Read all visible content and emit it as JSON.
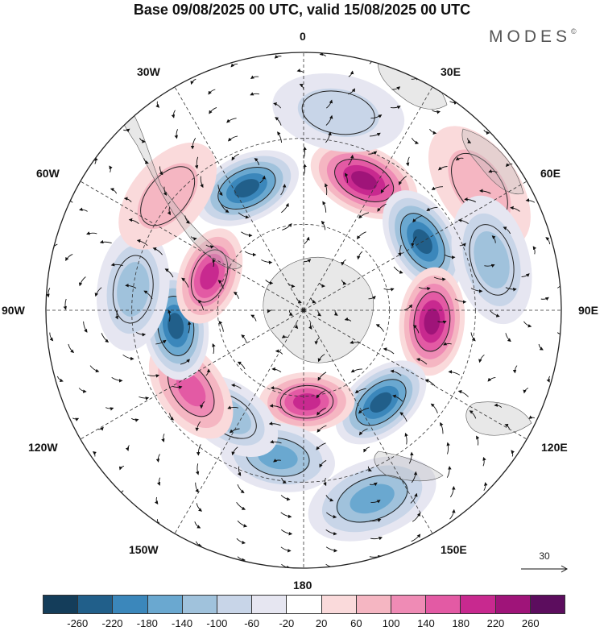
{
  "title": "Base 09/08/2025 00 UTC, valid 15/08/2025 00 UTC",
  "brand": "MODES",
  "brand_mark": "©",
  "lon_labels": {
    "top": "0",
    "tr30": "30E",
    "r60": "60E",
    "right": "90E",
    "br120": "120E",
    "br150": "150E",
    "bottom": "180",
    "bl150": "150W",
    "bl120": "120W",
    "left": "90W",
    "tl60": "60W",
    "tl30": "30W"
  },
  "reference_vector": {
    "value": "30",
    "icon": "arrow-right-icon"
  },
  "colorbar": {
    "colors": [
      "#143d5a",
      "#215f8a",
      "#3b87bb",
      "#6aa8d0",
      "#a0c2dc",
      "#c8d5e8",
      "#e6e6f1",
      "#ffffff",
      "#fadadb",
      "#f5b6c2",
      "#ef8bb5",
      "#e35aa4",
      "#c8298f",
      "#9f1479",
      "#5c0d5e"
    ],
    "tick_labels": [
      "-260",
      "-220",
      "-180",
      "-140",
      "-100",
      "-60",
      "-20",
      "20",
      "60",
      "100",
      "140",
      "180",
      "220",
      "260"
    ]
  },
  "anomaly_centers": [
    {
      "lon": 25,
      "lat": -40,
      "value": 240
    },
    {
      "lon": 60,
      "lat": -42,
      "value": -240
    },
    {
      "lon": 95,
      "lat": -45,
      "value": 260
    },
    {
      "lon": 140,
      "lat": -48,
      "value": -260
    },
    {
      "lon": 178,
      "lat": -58,
      "value": 190
    },
    {
      "lon": -170,
      "lat": -38,
      "value": -180
    },
    {
      "lon": -145,
      "lat": -45,
      "value": -140
    },
    {
      "lon": -125,
      "lat": -42,
      "value": 150
    },
    {
      "lon": -97,
      "lat": -45,
      "value": -230
    },
    {
      "lon": -70,
      "lat": -55,
      "value": 210
    },
    {
      "lon": -83,
      "lat": -30,
      "value": -140
    },
    {
      "lon": -25,
      "lat": -43,
      "value": -250
    },
    {
      "lon": 55,
      "lat": -15,
      "value": 90
    },
    {
      "lon": 75,
      "lat": -22,
      "value": -110
    },
    {
      "lon": 160,
      "lat": -20,
      "value": -170
    },
    {
      "lon": -50,
      "lat": -28,
      "value": 90
    },
    {
      "lon": 10,
      "lat": -20,
      "value": -70
    }
  ]
}
